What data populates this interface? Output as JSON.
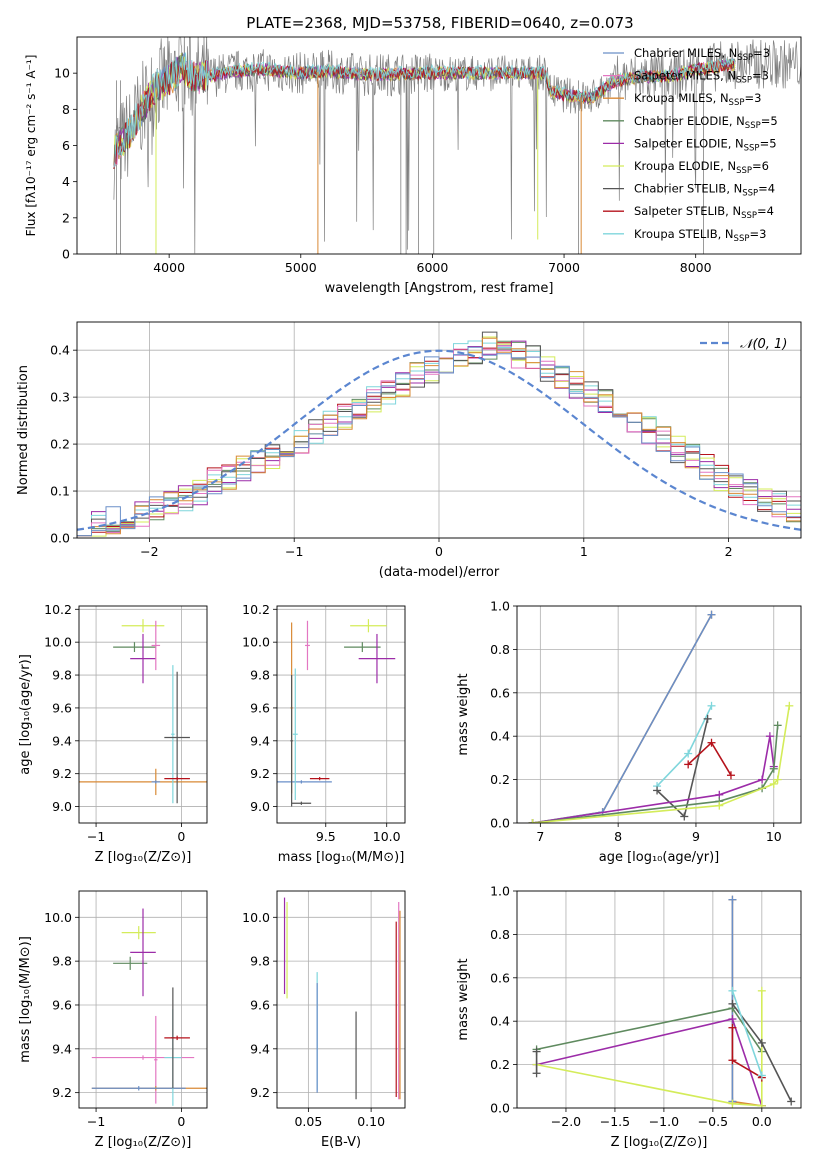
{
  "title": "PLATE=2368, MJD=53758, FIBERID=0640, z=0.073",
  "colors": {
    "c0": "#6a8fc8",
    "c1": "#e377c2",
    "c2": "#d98a36",
    "c3": "#5f8a5f",
    "c4": "#9c2ca8",
    "c5": "#d4ec5a",
    "c6": "#555555",
    "c7": "#b5121b",
    "c8": "#7fd6dc",
    "obs": "#808080",
    "normal": "#5b86d0"
  },
  "chart_data": [
    {
      "id": "spectrum",
      "type": "line",
      "xlabel": "wavelength [Angstrom, rest frame]",
      "ylabel": "Flux [fλ10⁻¹⁷ erg cm⁻² s⁻¹ A⁻¹]",
      "xlim": [
        3300,
        8800
      ],
      "ylim": [
        0,
        12
      ],
      "xticks": [
        "4000",
        "5000",
        "6000",
        "7000",
        "8000"
      ],
      "yticks": [
        "0",
        "2",
        "4",
        "6",
        "8",
        "10"
      ],
      "continuum": [
        [
          3580,
          5.6
        ],
        [
          3700,
          6.7
        ],
        [
          3800,
          8.1
        ],
        [
          3900,
          9.2
        ],
        [
          4000,
          9.6
        ],
        [
          4100,
          10.3
        ],
        [
          4200,
          9.7
        ],
        [
          4300,
          9.8
        ],
        [
          4500,
          10.1
        ],
        [
          4700,
          10.2
        ],
        [
          5000,
          10.0
        ],
        [
          5200,
          10.1
        ],
        [
          5500,
          9.9
        ],
        [
          6000,
          10.0
        ],
        [
          6500,
          10.0
        ],
        [
          6850,
          10.0
        ],
        [
          6900,
          9.0
        ],
        [
          7000,
          8.8
        ],
        [
          7200,
          8.6
        ],
        [
          7400,
          9.6
        ],
        [
          7600,
          9.8
        ],
        [
          7800,
          9.8
        ],
        [
          8000,
          10.2
        ],
        [
          8300,
          10.5
        ]
      ],
      "spikes": [
        [
          3900,
          0
        ],
        [
          5130,
          0
        ],
        [
          6800,
          0.8
        ],
        [
          7130,
          0
        ]
      ],
      "legend": [
        {
          "label": "Chabrier MILES, N",
          "sub": "SSP",
          "n": "=3",
          "color": "c0"
        },
        {
          "label": "Salpeter MILES, N",
          "sub": "SSP",
          "n": "=3",
          "color": "c1"
        },
        {
          "label": "Kroupa MILES, N",
          "sub": "SSP",
          "n": "=3",
          "color": "c2"
        },
        {
          "label": "Chabrier ELODIE, N",
          "sub": "SSP",
          "n": "=5",
          "color": "c3"
        },
        {
          "label": "Salpeter ELODIE, N",
          "sub": "SSP",
          "n": "=5",
          "color": "c4"
        },
        {
          "label": "Kroupa ELODIE, N",
          "sub": "SSP",
          "n": "=6",
          "color": "c5"
        },
        {
          "label": "Chabrier STELIB, N",
          "sub": "SSP",
          "n": "=4",
          "color": "c6"
        },
        {
          "label": "Salpeter STELIB, N",
          "sub": "SSP",
          "n": "=4",
          "color": "c7"
        },
        {
          "label": "Kroupa STELIB, N",
          "sub": "SSP",
          "n": "=3",
          "color": "c8"
        }
      ]
    },
    {
      "id": "residuals",
      "type": "bar",
      "xlabel": "(data-model)/error",
      "ylabel": "Normed distribution",
      "xlim": [
        -2.5,
        2.5
      ],
      "ylim": [
        0,
        0.46
      ],
      "xticks": [
        "−2",
        "−1",
        "0",
        "1",
        "2"
      ],
      "yticks": [
        "0.0",
        "0.1",
        "0.2",
        "0.3",
        "0.4"
      ],
      "legend": "𝒩(0, 1)",
      "bin_width": 0.1,
      "base_values": [
        0.035,
        0.033,
        0.038,
        0.045,
        0.05,
        0.062,
        0.07,
        0.086,
        0.1,
        0.12,
        0.13,
        0.145,
        0.16,
        0.175,
        0.19,
        0.205,
        0.225,
        0.245,
        0.26,
        0.28,
        0.295,
        0.315,
        0.33,
        0.345,
        0.36,
        0.37,
        0.39,
        0.4,
        0.41,
        0.4,
        0.39,
        0.38,
        0.36,
        0.345,
        0.325,
        0.31,
        0.29,
        0.27,
        0.25,
        0.23,
        0.21,
        0.19,
        0.17,
        0.15,
        0.13,
        0.115,
        0.1,
        0.085,
        0.07,
        0.06
      ]
    },
    {
      "id": "age-vs-Z",
      "type": "scatter",
      "xlabel": "Z [log₁₀(Z/Z⊙)]",
      "ylabel": "age  [log₁₀(age/yr)]",
      "xlim": [
        -1.2,
        0.3
      ],
      "ylim": [
        8.9,
        10.22
      ],
      "xticks": [
        "−1",
        "0"
      ],
      "yticks": [
        "9.0",
        "9.2",
        "9.4",
        "9.6",
        "9.8",
        "10.0",
        "10.2"
      ],
      "points": [
        {
          "c": "c5",
          "x": -0.45,
          "xerr": 0.25,
          "y": 10.1,
          "yerr": 0.04
        },
        {
          "c": "c3",
          "x": -0.55,
          "xerr": 0.25,
          "y": 9.97,
          "yerr": 0.03
        },
        {
          "c": "c4",
          "x": -0.45,
          "xerr": 0.15,
          "y": 9.9,
          "yerr": 0.15
        },
        {
          "c": "c1",
          "x": -0.3,
          "xerr": 0.05,
          "y": 9.98,
          "yerr": 0.15
        },
        {
          "c": "c2",
          "x": -0.3,
          "xerr": 0.95,
          "y": 9.15,
          "yerr": 0.08
        },
        {
          "c": "c0",
          "x": -0.3,
          "xerr": 0.05,
          "y": 9.15,
          "yerr": 0.01
        },
        {
          "c": "c8",
          "x": -0.1,
          "xerr": 0.02,
          "y": 9.44,
          "yerr": 0.42
        },
        {
          "c": "c6",
          "x": -0.05,
          "xerr": 0.15,
          "y": 9.42,
          "yerr": 0.4
        },
        {
          "c": "c7",
          "x": -0.05,
          "xerr": 0.15,
          "y": 9.17,
          "yerr": 0.01
        }
      ]
    },
    {
      "id": "age-vs-mass",
      "type": "scatter",
      "xlabel": "mass [log₁₀(M/M⊙)]",
      "ylabel": "",
      "xlim": [
        9.1,
        10.15
      ],
      "ylim": [
        8.9,
        10.22
      ],
      "xticks": [
        "9.5",
        "10.0"
      ],
      "yticks": [
        "9.0",
        "9.2",
        "9.4",
        "9.6",
        "9.8",
        "10.0",
        "10.2"
      ],
      "points": [
        {
          "c": "c5",
          "x": 9.85,
          "xerr": 0.15,
          "y": 10.1,
          "yerr": 0.04
        },
        {
          "c": "c3",
          "x": 9.8,
          "xerr": 0.15,
          "y": 9.97,
          "yerr": 0.03
        },
        {
          "c": "c4",
          "x": 9.92,
          "xerr": 0.15,
          "y": 9.9,
          "yerr": 0.15
        },
        {
          "c": "c1",
          "x": 9.35,
          "xerr": 0.02,
          "y": 9.98,
          "yerr": 0.15
        },
        {
          "c": "c2",
          "x": 9.22,
          "xerr": 0.01,
          "y": 9.6,
          "yerr": 0.52
        },
        {
          "c": "c0",
          "x": 9.3,
          "xerr": 0.25,
          "y": 9.15,
          "yerr": 0.01
        },
        {
          "c": "c8",
          "x": 9.25,
          "xerr": 0.02,
          "y": 9.44,
          "yerr": 0.4
        },
        {
          "c": "c6",
          "x": 9.22,
          "xerr": 0.01,
          "y": 9.4,
          "yerr": 0.4
        },
        {
          "c": "c7",
          "x": 9.45,
          "xerr": 0.08,
          "y": 9.17,
          "yerr": 0.01
        },
        {
          "c": "c6",
          "x": 9.3,
          "xerr": 0.08,
          "y": 9.02,
          "yerr": 0.01
        }
      ]
    },
    {
      "id": "weight-vs-age",
      "type": "line",
      "xlabel": "age  [log₁₀(age/yr)]",
      "ylabel": "mass weight",
      "xlim": [
        6.7,
        10.35
      ],
      "ylim": [
        0,
        1.0
      ],
      "xticks": [
        "7",
        "8",
        "9",
        "10"
      ],
      "yticks": [
        "0.0",
        "0.2",
        "0.4",
        "0.6",
        "0.8",
        "1.0"
      ],
      "series": [
        {
          "c": "c2",
          "x": [
            6.9,
            7.8,
            9.2
          ],
          "y": [
            0.0,
            0.05,
            0.96
          ]
        },
        {
          "c": "c0",
          "x": [
            6.9,
            7.8,
            9.2
          ],
          "y": [
            0.0,
            0.05,
            0.96
          ]
        },
        {
          "c": "c8",
          "x": [
            8.5,
            8.9,
            9.2
          ],
          "y": [
            0.17,
            0.32,
            0.54
          ]
        },
        {
          "c": "c6",
          "x": [
            8.5,
            8.85,
            9.15
          ],
          "y": [
            0.15,
            0.03,
            0.48
          ]
        },
        {
          "c": "c7",
          "x": [
            8.9,
            9.2,
            9.45
          ],
          "y": [
            0.27,
            0.37,
            0.22
          ]
        },
        {
          "c": "c4",
          "x": [
            6.9,
            9.3,
            9.85,
            9.95,
            10.0
          ],
          "y": [
            0.0,
            0.13,
            0.2,
            0.4,
            0.26
          ]
        },
        {
          "c": "c3",
          "x": [
            6.9,
            9.3,
            9.85,
            10.0,
            10.05
          ],
          "y": [
            0.0,
            0.1,
            0.16,
            0.25,
            0.45
          ]
        },
        {
          "c": "c5",
          "x": [
            6.9,
            9.3,
            10.0,
            10.05,
            10.2
          ],
          "y": [
            0.0,
            0.08,
            0.18,
            0.2,
            0.54
          ]
        }
      ]
    },
    {
      "id": "mass-vs-Z",
      "type": "scatter",
      "xlabel": "Z [log₁₀(Z/Z⊙)]",
      "ylabel": "mass [log₁₀(M/M⊙)]",
      "xlim": [
        -1.2,
        0.3
      ],
      "ylim": [
        9.13,
        10.12
      ],
      "xticks": [
        "−1",
        "0"
      ],
      "yticks": [
        "9.2",
        "9.4",
        "9.6",
        "9.8",
        "10.0"
      ],
      "points": [
        {
          "c": "c5",
          "x": -0.5,
          "xerr": 0.2,
          "y": 9.93,
          "yerr": 0.03
        },
        {
          "c": "c3",
          "x": -0.6,
          "xerr": 0.2,
          "y": 9.79,
          "yerr": 0.03
        },
        {
          "c": "c4",
          "x": -0.45,
          "xerr": 0.15,
          "y": 9.84,
          "yerr": 0.2
        },
        {
          "c": "c1",
          "x": -0.3,
          "xerr": 0.02,
          "y": 9.35,
          "yerr": 0.2
        },
        {
          "c": "c1",
          "x": -0.45,
          "xerr": 0.6,
          "y": 9.36,
          "yerr": 0.01
        },
        {
          "c": "c2",
          "x": -0.3,
          "xerr": 0.75,
          "y": 9.22,
          "yerr": 0.01
        },
        {
          "c": "c0",
          "x": -0.5,
          "xerr": 0.55,
          "y": 9.22,
          "yerr": 0.01
        },
        {
          "c": "c8",
          "x": -0.1,
          "xerr": 0.1,
          "y": 9.36,
          "yerr": 0.22
        },
        {
          "c": "c6",
          "x": -0.1,
          "xerr": 0.02,
          "y": 9.45,
          "yerr": 0.23
        },
        {
          "c": "c7",
          "x": -0.05,
          "xerr": 0.15,
          "y": 9.45,
          "yerr": 0.01
        }
      ]
    },
    {
      "id": "mass-vs-EBV",
      "type": "scatter",
      "xlabel": "E(B-V)",
      "ylabel": "",
      "xlim": [
        0.025,
        0.127
      ],
      "ylim": [
        9.13,
        10.12
      ],
      "xticks": [
        "0.05",
        "0.10"
      ],
      "yticks": [
        "9.2",
        "9.4",
        "9.6",
        "9.8",
        "10.0"
      ],
      "points": [
        {
          "c": "c5",
          "x": 0.033,
          "xerr": 0,
          "y": 9.85,
          "yerr": 0.22
        },
        {
          "c": "c4",
          "x": 0.031,
          "xerr": 0,
          "y": 9.87,
          "yerr": 0.22
        },
        {
          "c": "c8",
          "x": 0.057,
          "xerr": 0,
          "y": 9.48,
          "yerr": 0.27
        },
        {
          "c": "c0",
          "x": 0.057,
          "xerr": 0,
          "y": 9.45,
          "yerr": 0.25
        },
        {
          "c": "c6",
          "x": 0.088,
          "xerr": 0,
          "y": 9.37,
          "yerr": 0.2
        },
        {
          "c": "c1",
          "x": 0.122,
          "xerr": 0,
          "y": 9.62,
          "yerr": 0.45
        },
        {
          "c": "c2",
          "x": 0.123,
          "xerr": 0,
          "y": 9.6,
          "yerr": 0.43
        },
        {
          "c": "c7",
          "x": 0.12,
          "xerr": 0,
          "y": 9.58,
          "yerr": 0.4
        }
      ]
    },
    {
      "id": "weight-vs-Z",
      "type": "line",
      "xlabel": "Z [log₁₀(Z/Z⊙)]",
      "ylabel": "mass weight",
      "xlim": [
        -2.5,
        0.4
      ],
      "ylim": [
        0,
        1.0
      ],
      "xticks": [
        "−2.0",
        "−1.5",
        "−1.0",
        "−0.5",
        "0.0"
      ],
      "yticks": [
        "0.0",
        "0.2",
        "0.4",
        "0.6",
        "0.8",
        "1.0"
      ],
      "series": [
        {
          "c": "c2",
          "x": [
            -0.3,
            -0.3,
            0.0
          ],
          "y": [
            0.96,
            0.03,
            0.01
          ]
        },
        {
          "c": "c0",
          "x": [
            -0.3,
            -0.3
          ],
          "y": [
            0.96,
            0.03
          ]
        },
        {
          "c": "c3",
          "x": [
            -2.3,
            -0.3,
            0.0
          ],
          "y": [
            0.27,
            0.46,
            0.26
          ]
        },
        {
          "c": "c4",
          "x": [
            -2.3,
            -0.3,
            0.0
          ],
          "y": [
            0.2,
            0.41,
            0.01
          ]
        },
        {
          "c": "c5",
          "x": [
            -2.3,
            -0.3,
            0.0,
            0.0
          ],
          "y": [
            0.2,
            0.02,
            0.01,
            0.54
          ]
        },
        {
          "c": "c6",
          "x": [
            -0.3,
            0.0,
            0.3
          ],
          "y": [
            0.48,
            0.3,
            0.03
          ]
        },
        {
          "c": "c7",
          "x": [
            -0.3,
            -0.3,
            0.0
          ],
          "y": [
            0.37,
            0.22,
            0.14
          ]
        },
        {
          "c": "c8",
          "x": [
            -0.3,
            0.0
          ],
          "y": [
            0.54,
            0.15
          ]
        },
        {
          "c": "c6",
          "x": [
            -2.3,
            -2.3
          ],
          "y": [
            0.16,
            0.26
          ]
        }
      ]
    }
  ]
}
